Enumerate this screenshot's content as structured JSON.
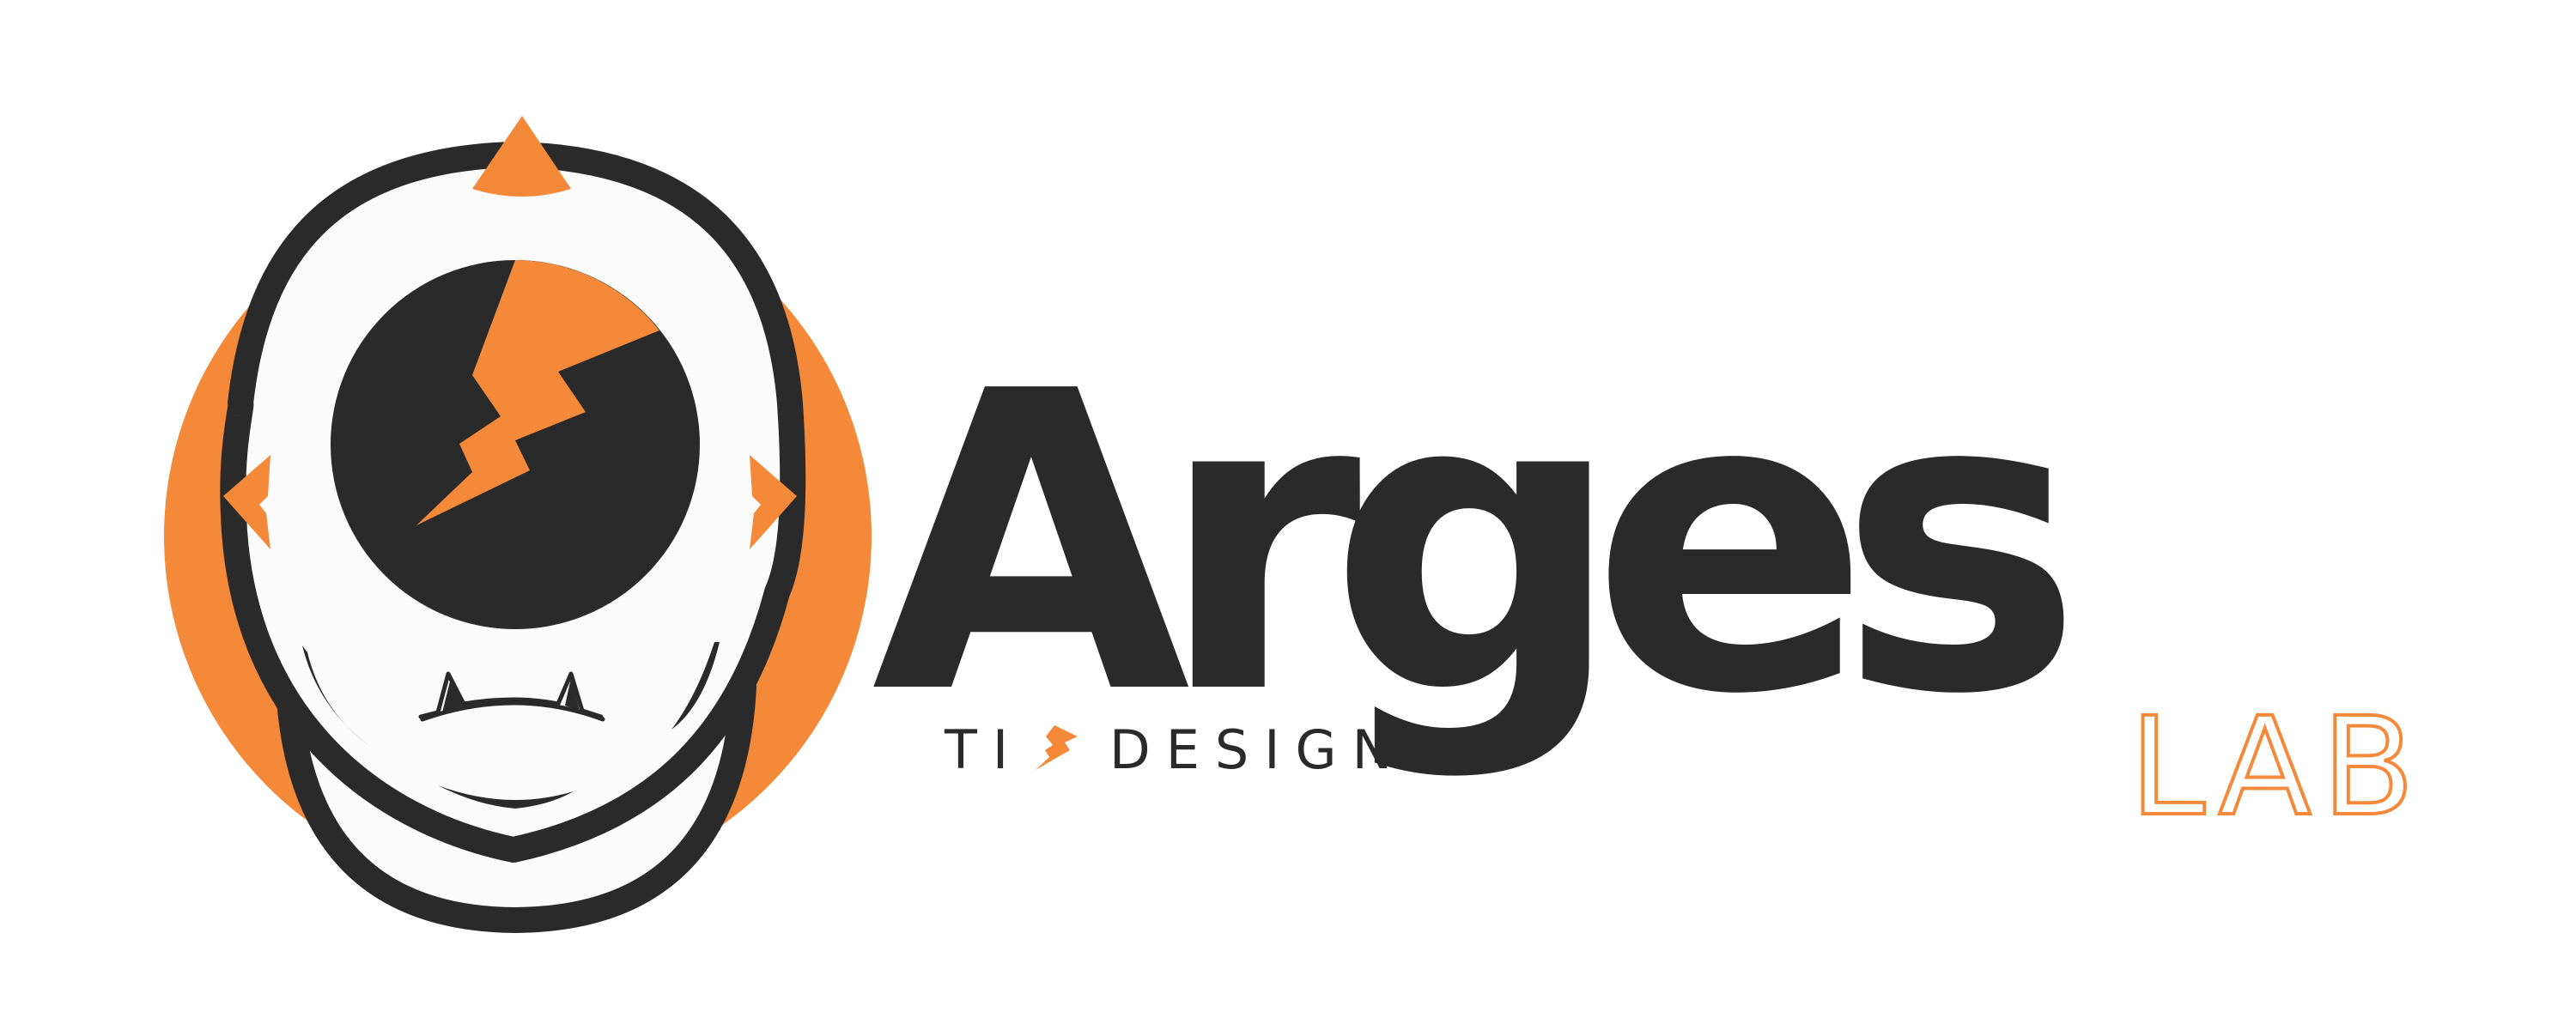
{
  "brand": {
    "name": "Arges",
    "sub": "LAB",
    "tagline_left": "TI",
    "tagline_right": "DESIGN"
  },
  "colors": {
    "accent": "#F5893A",
    "dark": "#2A2A2A",
    "face": "#FBFBFB",
    "background": "#FFFFFF"
  },
  "icons": [
    "cyclops-mascot-icon",
    "lightning-bolt-icon"
  ]
}
